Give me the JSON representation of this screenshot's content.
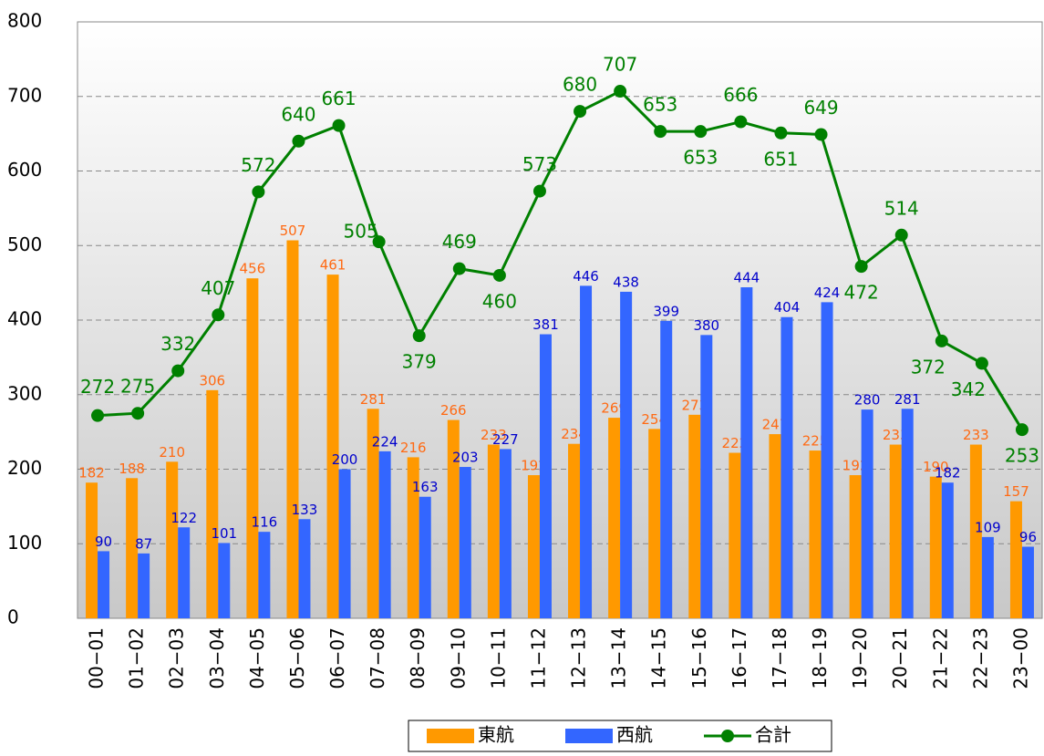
{
  "chart_data": {
    "type": "bar-line",
    "categories": [
      "00−01",
      "01−02",
      "02−03",
      "03−04",
      "04−05",
      "05−06",
      "06−07",
      "07−08",
      "08−09",
      "09−10",
      "10−11",
      "11−12",
      "12−13",
      "13−14",
      "14−15",
      "15−16",
      "16−17",
      "17−18",
      "18−19",
      "19−20",
      "20−21",
      "21−22",
      "22−23",
      "23−00"
    ],
    "series": [
      {
        "name": "東航",
        "type": "bar",
        "color": "#ff9900",
        "label_color": "#ff6a13",
        "values": [
          182,
          188,
          210,
          306,
          456,
          507,
          461,
          281,
          216,
          266,
          233,
          192,
          234,
          269,
          254,
          273,
          222,
          247,
          225,
          192,
          233,
          190,
          233,
          157
        ]
      },
      {
        "name": "西航",
        "type": "bar",
        "color": "#3366ff",
        "label_color": "#0000cc",
        "values": [
          90,
          87,
          122,
          101,
          116,
          133,
          200,
          224,
          163,
          203,
          227,
          381,
          446,
          438,
          399,
          380,
          444,
          404,
          424,
          280,
          281,
          182,
          109,
          96
        ]
      },
      {
        "name": "合計",
        "type": "line",
        "color": "#008000",
        "label_color": "#008000",
        "values": [
          272,
          275,
          332,
          407,
          572,
          640,
          661,
          505,
          379,
          469,
          460,
          573,
          680,
          707,
          653,
          653,
          666,
          651,
          649,
          472,
          514,
          372,
          342,
          253
        ]
      }
    ],
    "ylim": [
      0,
      800
    ],
    "yticks": [
      0,
      100,
      200,
      300,
      400,
      500,
      600,
      700,
      800
    ],
    "grid": true,
    "legend": "bottom"
  }
}
